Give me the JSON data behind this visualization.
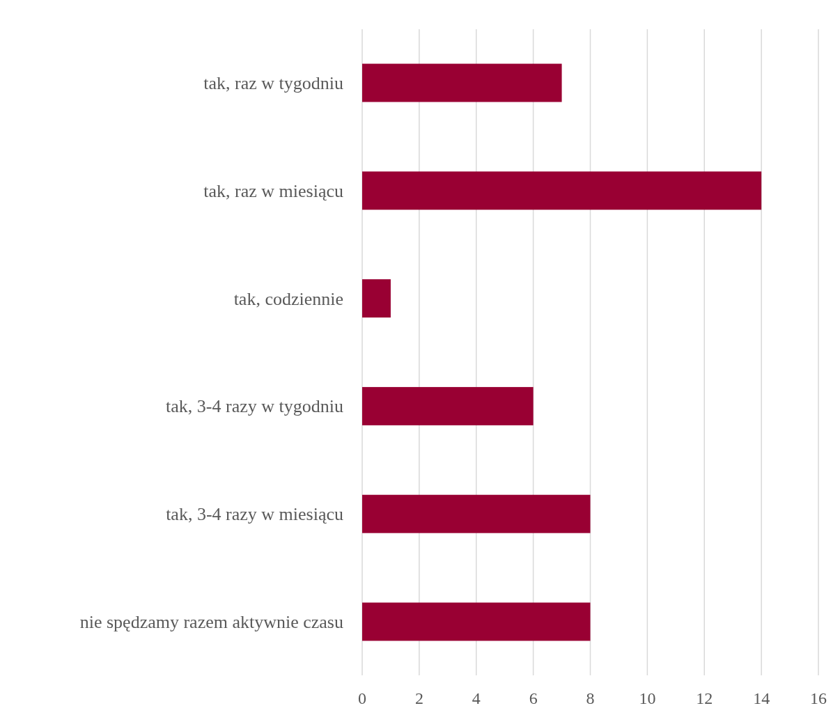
{
  "chart_data": {
    "type": "bar",
    "orientation": "horizontal",
    "categories": [
      "tak, raz w tygodniu",
      "tak, raz w miesiącu",
      "tak, codziennie",
      "tak, 3-4 razy w tygodniu",
      "tak, 3-4 razy w miesiącu",
      "nie spędzamy razem aktywnie czasu"
    ],
    "values": [
      7,
      14,
      1,
      6,
      8,
      8
    ],
    "color": "#990033",
    "xlim": [
      0,
      16
    ],
    "xticks": [
      0,
      2,
      4,
      6,
      8,
      10,
      12,
      14,
      16
    ],
    "grid": "x"
  }
}
